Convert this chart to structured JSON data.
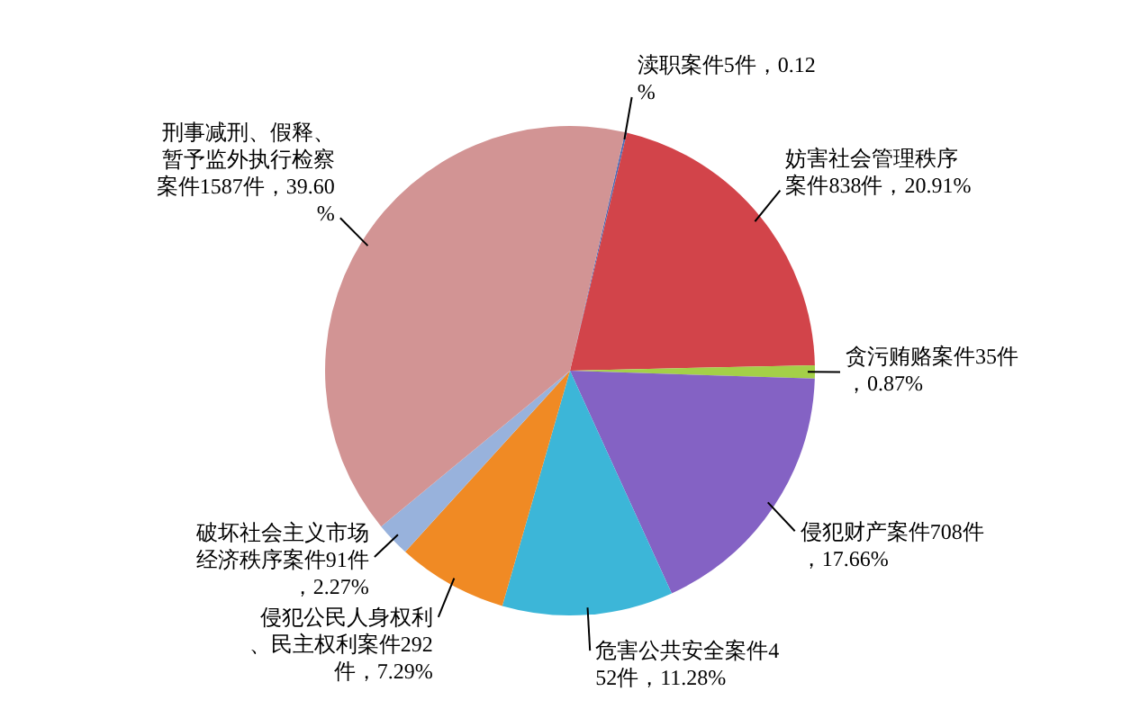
{
  "chart_data": {
    "type": "pie",
    "categories": [
      "渎职案件",
      "妨害社会管理秩序案件",
      "贪污贿赂案件",
      "侵犯财产案件",
      "危害公共安全案件",
      "侵犯公民人身权利、民主权利案件",
      "破坏社会主义市场经济秩序案件",
      "刑事减刑、假释、暂予监外执行检察案件"
    ],
    "values": [
      5,
      838,
      35,
      708,
      452,
      292,
      91,
      1587
    ],
    "value_labels": [
      "5件，0.12%",
      "838件，20.91%",
      "35件，0.87%",
      "708件，17.66%",
      "452件，11.28%",
      "292件，7.29%",
      "91件，2.27%",
      "1587件，39.60%"
    ],
    "colors": [
      "#4a6cb8",
      "#d2444a",
      "#a4d048",
      "#8462c4",
      "#3cb6d8",
      "#f08a24",
      "#98b2dc",
      "#d29494"
    ]
  }
}
